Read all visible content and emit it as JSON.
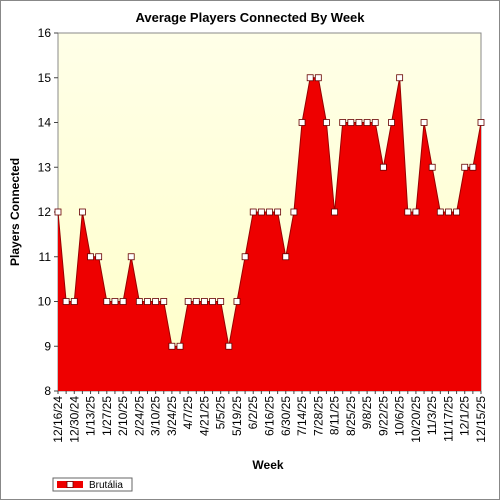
{
  "chart_data": {
    "type": "area",
    "title": "Average Players Connected By Week",
    "x_label": "Week",
    "y_label": "Players Connected",
    "categories": [
      "12/16/24",
      null,
      "12/30/24",
      null,
      "1/13/25",
      null,
      "1/27/25",
      null,
      "2/10/25",
      null,
      "2/24/25",
      null,
      "3/10/25",
      null,
      "3/24/25",
      null,
      "4/7/25",
      null,
      "4/21/25",
      null,
      "5/5/25",
      null,
      "5/19/25",
      null,
      "6/2/25",
      null,
      "6/16/25",
      null,
      "6/30/25",
      null,
      "7/14/25",
      null,
      "7/28/25",
      null,
      "8/11/25",
      null,
      "8/25/25",
      null,
      "9/8/25",
      null,
      "9/22/25",
      null,
      "10/6/25",
      null,
      "10/20/25",
      null,
      "11/3/25",
      null,
      "11/17/25",
      null,
      "12/1/25",
      null,
      "12/15/25"
    ],
    "series": [
      {
        "name": "Brutália",
        "color": "#ee0000",
        "values": [
          12,
          10,
          10,
          12,
          11,
          11,
          10,
          10,
          10,
          11,
          10,
          10,
          10,
          10,
          9,
          9,
          10,
          10,
          10,
          10,
          10,
          9,
          10,
          11,
          12,
          12,
          12,
          12,
          11,
          12,
          14,
          15,
          15,
          14,
          12,
          14,
          14,
          14,
          14,
          14,
          13,
          14,
          15,
          12,
          12,
          14,
          13,
          12,
          12,
          12,
          13,
          13,
          14
        ]
      }
    ],
    "ylim": [
      8,
      16
    ],
    "yticks": [
      8,
      9,
      10,
      11,
      12,
      13,
      14,
      15,
      16
    ],
    "grid": false,
    "legend": "bottom-left"
  }
}
